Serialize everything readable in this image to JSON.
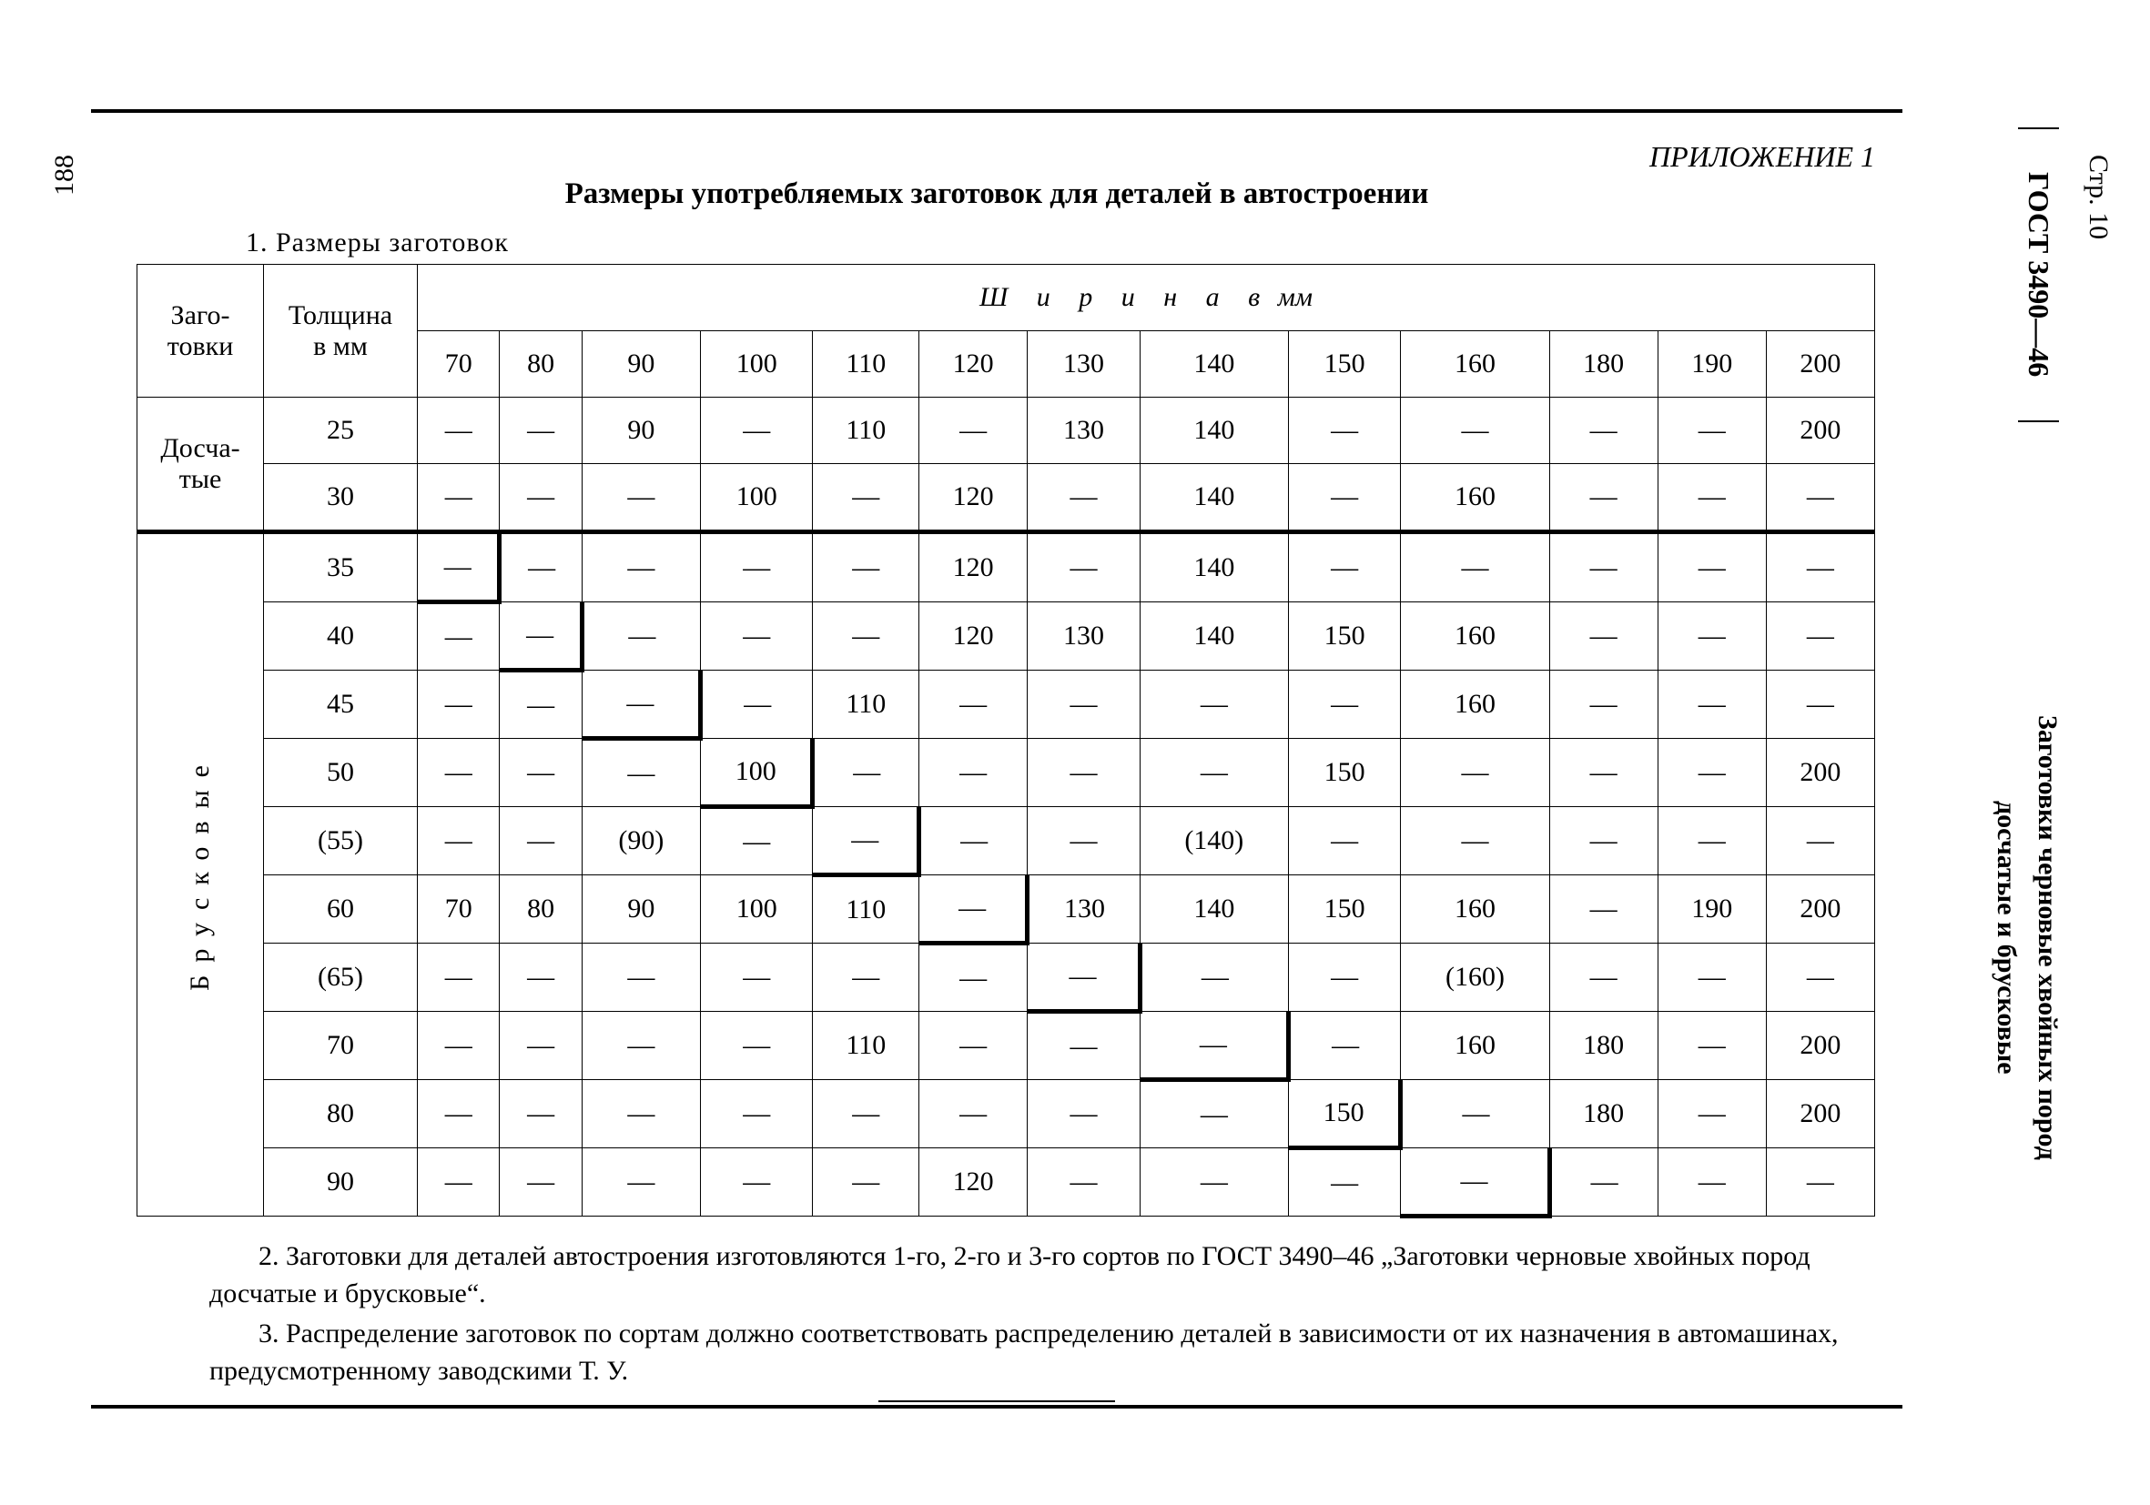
{
  "appendix": "ПРИЛОЖЕНИЕ 1",
  "title": "Размеры употребляемых заготовок для деталей в автостроении",
  "subtitle": "1. Размеры заготовок",
  "header": {
    "col1": "Заго-\nтовки",
    "col2": "Толщина\nв мм",
    "width_span": "Ш и р и н а   в",
    "width_unit": "мм",
    "widths": [
      "70",
      "80",
      "90",
      "100",
      "110",
      "120",
      "130",
      "140",
      "150",
      "160",
      "180",
      "190",
      "200"
    ]
  },
  "group1": "Досча-\nтые",
  "group2": "Брусковые",
  "rows": [
    {
      "t": "25",
      "c": [
        "—",
        "—",
        "90",
        "—",
        "110",
        "—",
        "130",
        "140",
        "—",
        "—",
        "—",
        "—",
        "200"
      ]
    },
    {
      "t": "30",
      "c": [
        "—",
        "—",
        "—",
        "100",
        "—",
        "120",
        "—",
        "140",
        "—",
        "160",
        "—",
        "—",
        "—"
      ]
    },
    {
      "t": "35",
      "c": [
        "—",
        "—",
        "—",
        "—",
        "—",
        "120",
        "—",
        "140",
        "—",
        "—",
        "—",
        "—",
        "—"
      ]
    },
    {
      "t": "40",
      "c": [
        "—",
        "—",
        "—",
        "—",
        "—",
        "120",
        "130",
        "140",
        "150",
        "160",
        "—",
        "—",
        "—"
      ]
    },
    {
      "t": "45",
      "c": [
        "—",
        "—",
        "—",
        "—",
        "110",
        "—",
        "—",
        "—",
        "—",
        "160",
        "—",
        "—",
        "—"
      ]
    },
    {
      "t": "50",
      "c": [
        "—",
        "—",
        "—",
        "100",
        "—",
        "—",
        "—",
        "—",
        "150",
        "—",
        "—",
        "—",
        "200"
      ]
    },
    {
      "t": "(55)",
      "c": [
        "—",
        "—",
        "(90)",
        "—",
        "—",
        "—",
        "—",
        "(140)",
        "—",
        "—",
        "—",
        "—",
        "—"
      ]
    },
    {
      "t": "60",
      "c": [
        "70",
        "80",
        "90",
        "100",
        "110",
        "—",
        "130",
        "140",
        "150",
        "160",
        "—",
        "190",
        "200"
      ]
    },
    {
      "t": "(65)",
      "c": [
        "—",
        "—",
        "—",
        "—",
        "—",
        "—",
        "—",
        "—",
        "—",
        "(160)",
        "—",
        "—",
        "—"
      ]
    },
    {
      "t": "70",
      "c": [
        "—",
        "—",
        "—",
        "—",
        "110",
        "—",
        "—",
        "—",
        "—",
        "160",
        "180",
        "—",
        "200"
      ]
    },
    {
      "t": "80",
      "c": [
        "—",
        "—",
        "—",
        "—",
        "—",
        "—",
        "—",
        "—",
        "150",
        "—",
        "180",
        "—",
        "200"
      ]
    },
    {
      "t": "90",
      "c": [
        "—",
        "—",
        "—",
        "—",
        "—",
        "120",
        "—",
        "—",
        "—",
        "—",
        "—",
        "—",
        "—"
      ]
    }
  ],
  "notes": {
    "n2": "2. Заготовки для деталей автостроения изготовляются 1-го, 2-го и 3-го сортов по ГОСТ 3490–46 „Заготовки черновые хвойных пород досчатые и брусковые“.",
    "n3": "3. Распределение заготовок по сортам должно соответствовать распределению деталей в зависимости от их назначения в автомашинах, предусмотренному заводскими Т. У."
  },
  "side": {
    "pageno": "188",
    "str": "Стр. 10",
    "gost": "ГОСТ 3490—46",
    "desc_line1": "Заготовки черновые хвойных пород",
    "desc_line2": "досчатые и брусковые"
  }
}
